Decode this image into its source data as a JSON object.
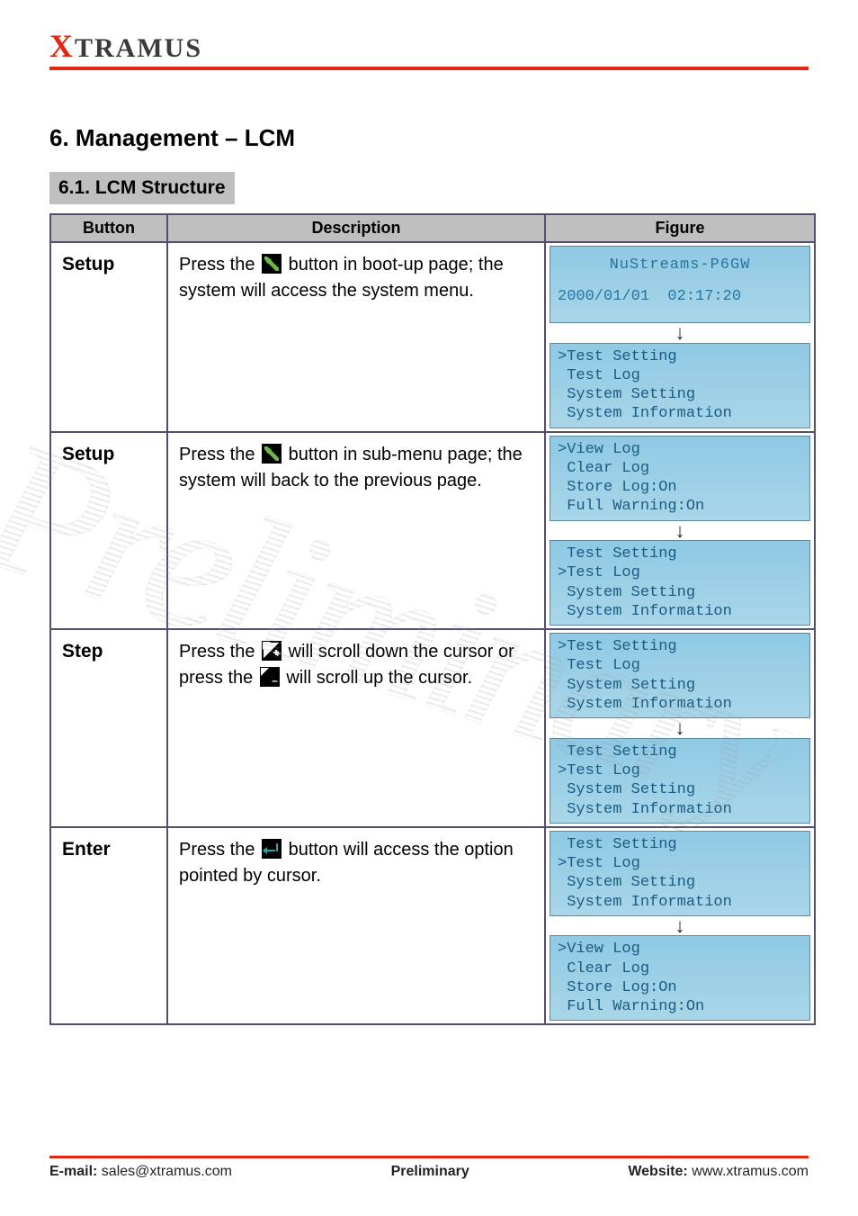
{
  "logo": {
    "x": "X",
    "rest": "TRAMUS"
  },
  "section_title": "6. Management – LCM",
  "subsection_title": "6.1. LCM Structure",
  "table": {
    "headers": [
      "Button",
      "Description",
      "Figure"
    ],
    "rows": [
      {
        "button": "Setup",
        "desc_before": "Press the ",
        "icon": "wrench",
        "desc_after": " button in boot-up page; the system will access the system menu.",
        "figure": {
          "top": {
            "type": "title",
            "title": "NuStreams-P6GW",
            "date": "2000/01/01  02:17:20"
          },
          "bottom": {
            "lines": [
              ">Test Setting",
              " Test Log",
              " System Setting",
              " System Information"
            ]
          }
        }
      },
      {
        "button": "Setup",
        "desc_before": "Press the ",
        "icon": "wrench",
        "desc_after": " button in sub-menu page; the system will back to the previous page.",
        "figure": {
          "top": {
            "lines": [
              ">View Log",
              " Clear Log",
              " Store Log:On",
              " Full Warning:On"
            ]
          },
          "bottom": {
            "lines": [
              " Test Setting",
              ">Test Log",
              " System Setting",
              " System Information"
            ]
          }
        }
      },
      {
        "button": "Step",
        "desc_before": "Press the ",
        "icon": "plus",
        "desc_mid": " will scroll down the cursor or press the ",
        "icon2": "minus",
        "desc_after": " will scroll up the cursor.",
        "figure": {
          "top": {
            "lines": [
              ">Test Setting",
              " Test Log",
              " System Setting",
              " System Information"
            ]
          },
          "bottom": {
            "lines": [
              " Test Setting",
              ">Test Log",
              " System Setting",
              " System Information"
            ]
          }
        }
      },
      {
        "button": "Enter",
        "desc_before": "Press the ",
        "icon": "enter",
        "desc_after": " button will access the option pointed by cursor.",
        "figure": {
          "top": {
            "lines": [
              " Test Setting",
              ">Test Log",
              " System Setting",
              " System Information"
            ]
          },
          "bottom": {
            "lines": [
              ">View Log",
              " Clear Log",
              " Store Log:On",
              " Full Warning:On"
            ]
          }
        }
      }
    ]
  },
  "down_arrow": "↓",
  "footer": {
    "left_label": "E-mail:",
    "left_value": "sales@xtramus.com",
    "center_label": "Preliminary",
    "center_value": "",
    "right_label": "Website:",
    "right_value": "www.xtramus.com"
  },
  "watermark": "Preliminary",
  "colors": {
    "brand_red": "#e12712",
    "lcd_bg_top": "#8fc9e4",
    "lcd_bg_bottom": "#a9d6e8",
    "lcd_text": "#1a5c84",
    "table_border": "#4f4f70",
    "header_bg": "#bfbfbf"
  }
}
